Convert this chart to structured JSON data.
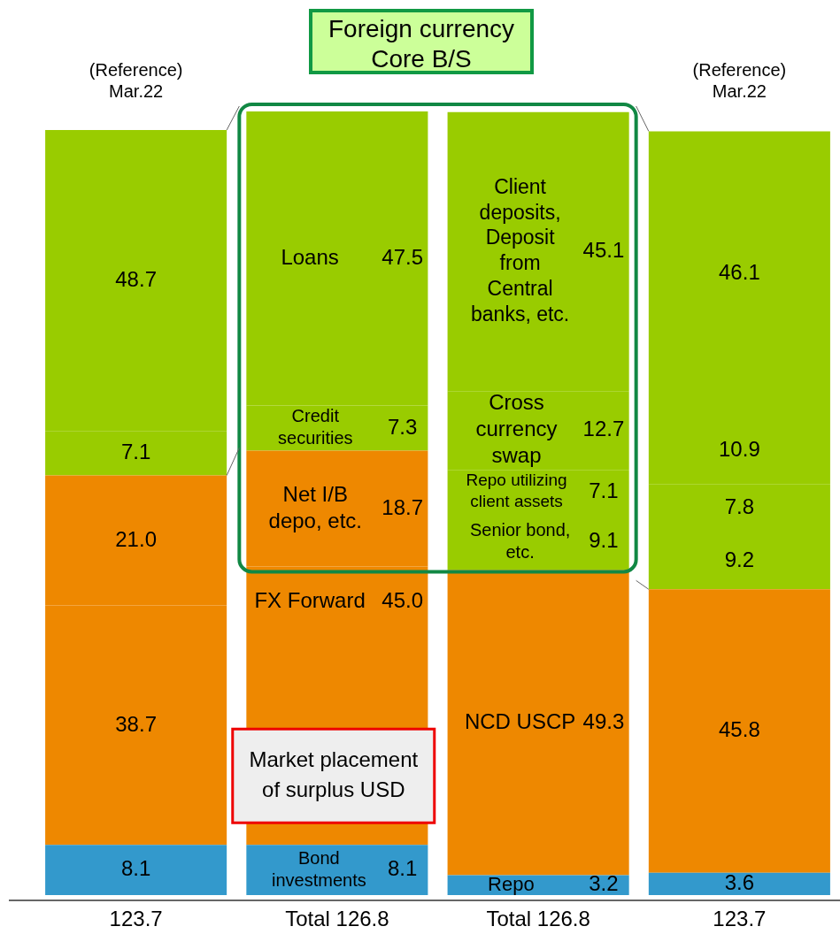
{
  "chart_data": {
    "type": "bar",
    "title": "Foreign currency Core B/S",
    "stacked": true,
    "categories": [
      "(Reference) Mar.22",
      null,
      null,
      "(Reference) Mar.22"
    ],
    "series": [
      {
        "colors": [
          "#3399cc",
          "#3399cc",
          "#3399cc",
          "#3399cc"
        ],
        "values": [
          8.1,
          8.1,
          3.2,
          3.6
        ],
        "value_labels": [
          "8.1",
          "8.1",
          "3.2",
          "3.6"
        ]
      },
      {
        "colors": [
          "#ee8800",
          "#ee8800",
          "#ee8800",
          "#ee8800"
        ],
        "values": [
          38.7,
          45.0,
          49.3,
          45.8
        ],
        "value_labels": [
          "38.7",
          "45.0",
          "49.3",
          "45.8"
        ]
      },
      {
        "colors": [
          "#ee8800",
          "#ee8800",
          "#99cc00",
          "#99cc00"
        ],
        "values": [
          21.0,
          18.7,
          9.1,
          9.2
        ],
        "value_labels": [
          "21.0",
          "18.7",
          "9.1",
          "9.2"
        ]
      },
      {
        "colors": [
          "#99cc00",
          "#99cc00",
          "#99cc00",
          "#99cc00"
        ],
        "values": [
          7.1,
          7.3,
          7.1,
          7.8
        ],
        "value_labels": [
          "7.1",
          "7.3",
          "7.1",
          "7.8"
        ]
      },
      {
        "colors": [
          "#99cc00",
          "#99cc00",
          "#99cc00",
          "#99cc00"
        ],
        "values": [
          48.7,
          47.5,
          12.7,
          10.9
        ],
        "value_labels": [
          "48.7",
          "47.5",
          "12.7",
          "10.9"
        ]
      },
      {
        "colors": [
          "#99cc00",
          "#99cc00",
          "#99cc00",
          "#99cc00"
        ],
        "values": [
          null,
          null,
          45.1,
          46.1
        ],
        "value_labels": [
          null,
          null,
          "45.1",
          "46.1"
        ]
      }
    ],
    "totals": [
      "123.7",
      "Total 126.8",
      "Total 126.8",
      "123.7"
    ],
    "annotations": [
      "Loans",
      "Credit securities",
      "Net I/B depo, etc.",
      "FX Forward",
      "Bond investments",
      "Client deposits, Deposit from Central banks, etc.",
      "Cross currency swap",
      "Repo utilizing client assets",
      "Senior bond, etc.",
      "NCD USCP",
      "Repo",
      "Market placement of surplus USD"
    ]
  }
}
